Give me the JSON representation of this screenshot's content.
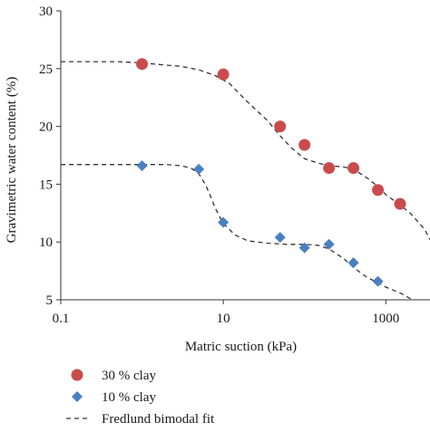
{
  "chart_data": {
    "type": "scatter",
    "title": "",
    "xlabel": "Matric suction (kPa)",
    "ylabel": "Gravimetric water content (%)",
    "xscale": "log",
    "xlim": [
      0.1,
      3500
    ],
    "ylim": [
      5,
      30
    ],
    "xticks": [
      0.1,
      10,
      1000
    ],
    "xtick_labels": [
      "0.1",
      "10",
      "1000"
    ],
    "yticks": [
      5,
      10,
      15,
      20,
      25,
      30
    ],
    "ytick_labels": [
      "5",
      "10",
      "15",
      "20",
      "25",
      "30"
    ],
    "grid": false,
    "legend_position": "bottom",
    "series": [
      {
        "name": "30 % clay",
        "marker": "circle",
        "color": "#c94c4c",
        "x": [
          1,
          10,
          50,
          100,
          200,
          400,
          800,
          1500
        ],
        "y": [
          25.4,
          24.5,
          20.0,
          18.4,
          16.4,
          16.4,
          14.5,
          13.3
        ]
      },
      {
        "name": "10 % clay",
        "marker": "diamond",
        "color": "#4a7fc1",
        "x": [
          1,
          5,
          10,
          50,
          100,
          200,
          400,
          800
        ],
        "y": [
          16.6,
          16.3,
          11.7,
          10.4,
          9.5,
          9.8,
          8.2,
          6.6
        ]
      }
    ],
    "fits": [
      {
        "name": "Fredlund bimodal fit",
        "style": "dashed",
        "color": "#333333",
        "x": [
          0.1,
          0.5,
          1,
          2,
          3,
          5,
          8,
          12,
          20,
          35,
          50,
          70,
          100,
          150,
          200,
          300,
          400,
          600,
          800,
          1000,
          1500,
          2000,
          3000,
          3500
        ],
        "y": [
          25.6,
          25.6,
          25.5,
          25.3,
          25.2,
          24.9,
          24.4,
          23.7,
          22.1,
          20.5,
          19.2,
          18.1,
          17.2,
          16.8,
          16.6,
          16.5,
          16.3,
          15.5,
          14.8,
          14.1,
          13.2,
          12.5,
          11.1,
          10.2
        ]
      },
      {
        "name": "",
        "style": "dashed",
        "color": "#333333",
        "x": [
          0.1,
          1,
          2,
          3,
          4,
          5,
          6,
          7,
          8,
          10,
          14,
          20,
          35,
          60,
          100,
          150,
          200,
          300,
          400,
          500,
          600,
          800,
          1000,
          1500,
          2000,
          2500
        ],
        "y": [
          16.7,
          16.7,
          16.7,
          16.6,
          16.4,
          15.9,
          15.0,
          13.9,
          12.9,
          11.6,
          10.6,
          10.1,
          9.9,
          9.8,
          9.8,
          9.7,
          9.4,
          8.6,
          7.8,
          7.3,
          6.9,
          6.5,
          6.1,
          5.6,
          5.1,
          4.8
        ]
      }
    ],
    "legend": [
      {
        "label": "30 % clay",
        "marker": "circle",
        "color": "#c94c4c"
      },
      {
        "label": "10 % clay",
        "marker": "diamond",
        "color": "#4a7fc1"
      },
      {
        "label": "Fredlund bimodal fit",
        "marker": "dashed-line",
        "color": "#333333"
      }
    ]
  }
}
